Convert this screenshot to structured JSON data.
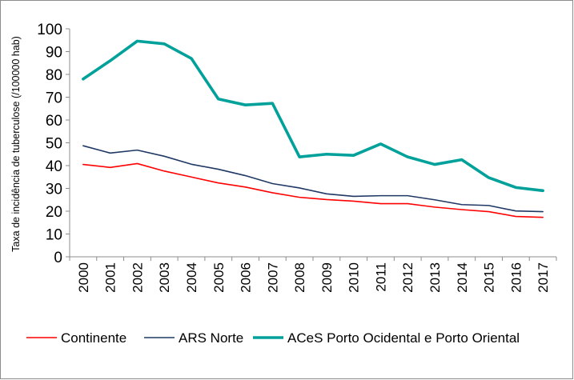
{
  "chart_data": {
    "type": "line",
    "title": "",
    "xlabel": "",
    "ylabel": "Taxa de incidência de tuberculose (/100000 hab)",
    "ylim": [
      0,
      100
    ],
    "yticks": [
      "0",
      "10",
      "20",
      "30",
      "40",
      "50",
      "60",
      "70",
      "80",
      "90",
      "100"
    ],
    "categories": [
      "2000",
      "2001",
      "2002",
      "2003",
      "2004",
      "2005",
      "2006",
      "2007",
      "2008",
      "2009",
      "2010",
      "2011",
      "2012",
      "2013",
      "2014",
      "2015",
      "2016",
      "2017"
    ],
    "grid": false,
    "legend_position": "bottom",
    "series": [
      {
        "name": "Continente",
        "color": "#ff0000",
        "values": [
          40.5,
          39.2,
          40.9,
          37.6,
          35.0,
          32.4,
          30.6,
          28.1,
          26.1,
          25.1,
          24.4,
          23.3,
          23.3,
          21.8,
          20.7,
          19.8,
          17.7,
          17.3
        ]
      },
      {
        "name": "ARS Norte",
        "color": "#1f3864",
        "values": [
          48.7,
          45.5,
          46.8,
          44.1,
          40.6,
          38.4,
          35.6,
          32.1,
          30.2,
          27.6,
          26.5,
          26.8,
          26.8,
          25.0,
          22.9,
          22.5,
          20.1,
          19.8
        ]
      },
      {
        "name": "ACeS Porto Ocidental e Porto Oriental",
        "color": "#00a19a",
        "values": [
          78.0,
          86.0,
          94.6,
          93.4,
          87.0,
          69.2,
          66.6,
          67.3,
          43.8,
          45.0,
          44.5,
          49.5,
          43.8,
          40.5,
          42.6,
          34.7,
          30.4,
          29.0
        ]
      }
    ]
  }
}
